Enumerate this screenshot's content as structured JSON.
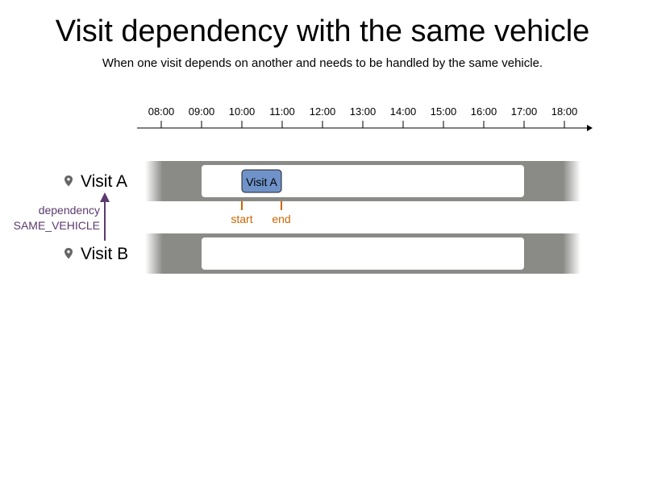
{
  "title": "Visit dependency with the same vehicle",
  "subtitle": "When one visit depends on another and needs to be handled by the same vehicle.",
  "timeline": {
    "ticks": [
      "08:00",
      "09:00",
      "10:00",
      "11:00",
      "12:00",
      "13:00",
      "14:00",
      "15:00",
      "16:00",
      "17:00",
      "18:00"
    ]
  },
  "rows": [
    {
      "label": "Visit A",
      "icon": "map-pin-icon"
    },
    {
      "label": "Visit B",
      "icon": "map-pin-icon"
    }
  ],
  "visit_block": {
    "label": "Visit A",
    "start": "10:00",
    "end": "11:00"
  },
  "markers": {
    "start_label": "start",
    "end_label": "end"
  },
  "dependency": {
    "line1": "dependency",
    "line2": "SAME_VEHICLE"
  },
  "colors": {
    "lane_gray": "#8a8b87",
    "visit_block_fill": "#6f92c8",
    "marker_orange": "#cc6600",
    "dependency_purple": "#5c3a6e"
  }
}
